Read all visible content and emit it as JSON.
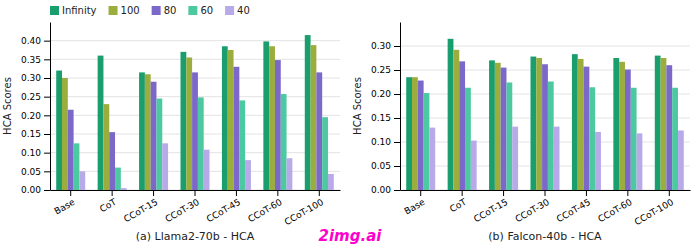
{
  "chart_data": [
    {
      "type": "bar",
      "title": "(a) Llama2-70b - HCA",
      "ylabel": "HCA Scores",
      "categories": [
        "Base",
        "CoT",
        "CCoT-15",
        "CCoT-30",
        "CCoT-45",
        "CCoT-60",
        "CCoT-100"
      ],
      "series": [
        {
          "name": "Infinity",
          "color": "#1a9e6e",
          "values": [
            0.32,
            0.36,
            0.315,
            0.37,
            0.385,
            0.398,
            0.415
          ]
        },
        {
          "name": "100",
          "color": "#9aad3d",
          "values": [
            0.3,
            0.23,
            0.31,
            0.355,
            0.375,
            0.385,
            0.388
          ]
        },
        {
          "name": "80",
          "color": "#7b68c8",
          "values": [
            0.215,
            0.155,
            0.29,
            0.315,
            0.33,
            0.348,
            0.315
          ]
        },
        {
          "name": "60",
          "color": "#4cc9a0",
          "values": [
            0.125,
            0.06,
            0.245,
            0.248,
            0.24,
            0.257,
            0.195
          ]
        },
        {
          "name": "40",
          "color": "#b8a9e8",
          "values": [
            0.05,
            0.005,
            0.125,
            0.108,
            0.08,
            0.085,
            0.043
          ]
        }
      ],
      "ylim": [
        0,
        0.45
      ],
      "yticks": [
        {
          "value": 0.0,
          "label": "0.00"
        },
        0.05,
        {
          "value": 0.1,
          "label": "0.10"
        },
        0.15,
        {
          "value": 0.2,
          "label": "0.20"
        },
        0.25,
        {
          "value": 0.3,
          "label": "0.30"
        },
        0.35,
        {
          "value": 0.4,
          "label": "0.40"
        }
      ],
      "grid": true,
      "legend": "upper left",
      "annotations": [
        {
          "text": "2img.ai",
          "color": "#ff00cc"
        }
      ]
    },
    {
      "type": "bar",
      "title": "(b) Falcon-40b - HCA",
      "ylabel": "HCA Scores",
      "categories": [
        "Base",
        "CoT",
        "CCoT-15",
        "CCoT-30",
        "CCoT-45",
        "CCoT-60",
        "CCoT-100"
      ],
      "series": [
        {
          "name": "Infinity",
          "color": "#1a9e6e",
          "values": [
            0.235,
            0.315,
            0.27,
            0.278,
            0.283,
            0.275,
            0.28
          ]
        },
        {
          "name": "100",
          "color": "#9aad3d",
          "values": [
            0.235,
            0.292,
            0.265,
            0.275,
            0.273,
            0.267,
            0.275
          ]
        },
        {
          "name": "80",
          "color": "#7b68c8",
          "values": [
            0.228,
            0.268,
            0.255,
            0.262,
            0.257,
            0.251,
            0.26
          ]
        },
        {
          "name": "60",
          "color": "#4cc9a0",
          "values": [
            0.202,
            0.213,
            0.224,
            0.226,
            0.214,
            0.213,
            0.213
          ]
        },
        {
          "name": "40",
          "color": "#b8a9e8",
          "values": [
            0.13,
            0.103,
            0.132,
            0.132,
            0.121,
            0.118,
            0.124
          ]
        }
      ],
      "ylim": [
        0,
        0.35
      ],
      "yticks": [
        {
          "value": 0.0,
          "label": "0.00"
        },
        0.05,
        {
          "value": 0.1,
          "label": "0.10"
        },
        0.15,
        {
          "value": 0.2,
          "label": "0.20"
        },
        0.25,
        {
          "value": 0.3,
          "label": "0.30"
        }
      ],
      "grid": true
    }
  ]
}
